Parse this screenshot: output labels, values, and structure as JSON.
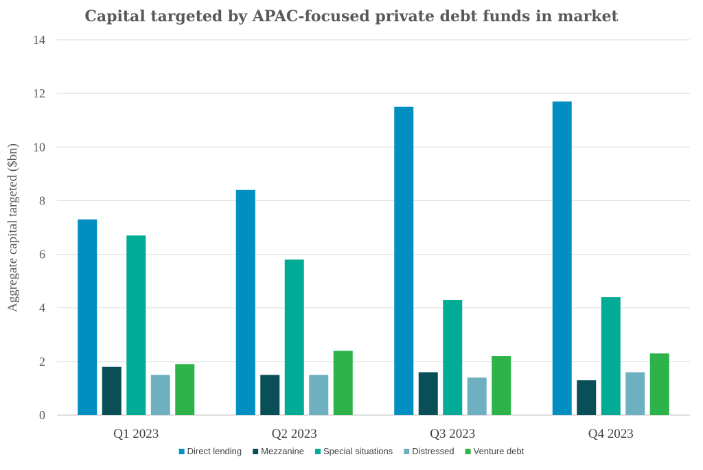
{
  "chart_data": {
    "type": "bar",
    "title": "Capital targeted by APAC-focused private debt funds in market",
    "xlabel": "",
    "ylabel": "Aggregate capital targeted ($bn)",
    "ylim": [
      0,
      14
    ],
    "yticks": [
      0,
      2,
      4,
      6,
      8,
      10,
      12,
      14
    ],
    "categories": [
      "Q1 2023",
      "Q2 2023",
      "Q3 2023",
      "Q4 2023"
    ],
    "grid": true,
    "legend_position": "bottom",
    "series": [
      {
        "name": "Direct lending",
        "color": "#008fc0",
        "values": [
          7.3,
          8.4,
          11.5,
          11.7
        ]
      },
      {
        "name": "Mezzanine",
        "color": "#084f58",
        "values": [
          1.8,
          1.5,
          1.6,
          1.3
        ]
      },
      {
        "name": "Special situations",
        "color": "#00ac96",
        "values": [
          6.7,
          5.8,
          4.3,
          4.4
        ]
      },
      {
        "name": "Distressed",
        "color": "#6fb0c0",
        "values": [
          1.5,
          1.5,
          1.4,
          1.6
        ]
      },
      {
        "name": "Venture debt",
        "color": "#2db34a",
        "values": [
          1.9,
          2.4,
          2.2,
          2.3
        ]
      }
    ]
  }
}
